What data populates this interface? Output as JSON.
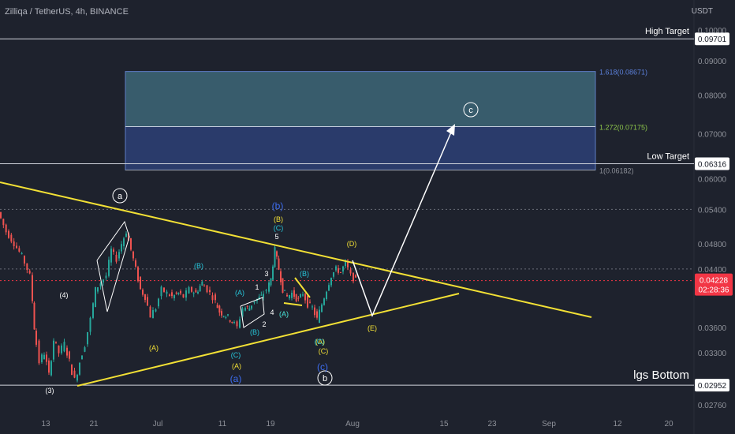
{
  "header": {
    "title": "Zilliqa / TetherUS, 4h, BINANCE",
    "currency": "USDT"
  },
  "colors": {
    "background": "#1e222d",
    "up": "#26a69a",
    "down": "#ef5350",
    "trendline": "#f2e035",
    "projection": "#ffffff",
    "zone_upper": "#4f8ca0",
    "zone_lower": "#3a5ab8",
    "hline": "#d1d4dc",
    "price": "#f23645",
    "grid_text": "#8e9199"
  },
  "chart_data": {
    "type": "candlestick",
    "symbol": "ZILUSDT",
    "timeframe": "4h",
    "exchange": "BINANCE",
    "y_scale": "log",
    "ylim": [
      0.0265,
      0.106
    ],
    "y_ticks": [
      "0.02760",
      "0.03300",
      "0.03600",
      "0.04400",
      "0.04800",
      "0.05400",
      "0.06000",
      "0.07000",
      "0.08000",
      "0.09000",
      "0.10000"
    ],
    "x_ticks": [
      "13",
      "21",
      "Jul",
      "11",
      "19",
      "Aug",
      "15",
      "23",
      "Sep",
      "12",
      "20"
    ],
    "horizontal_levels": [
      {
        "label": "High Target",
        "value": 0.09701,
        "tag": "0.09701"
      },
      {
        "label": "Low Target",
        "value": 0.06316,
        "tag": "0.06316"
      },
      {
        "label": "lgs Bottom",
        "value": 0.02952,
        "tag": "0.02952"
      }
    ],
    "fib_levels": [
      {
        "label": "1.618(0.08671)",
        "value": 0.08671
      },
      {
        "label": "1.272(0.07175)",
        "value": 0.07175
      },
      {
        "label": "1(0.06182)",
        "value": 0.06182
      }
    ],
    "current_price": {
      "value": "0.04228",
      "countdown": "02:28:36"
    },
    "wave_labels": [
      "a",
      "b",
      "c",
      "(a)",
      "(b)",
      "(c)",
      "(A)",
      "(B)",
      "(C)",
      "(D)",
      "(E)",
      "1",
      "2",
      "3",
      "4",
      "5",
      "(3)",
      "(4)"
    ],
    "trendlines": [
      "upper descending (yellow)",
      "lower ascending (yellow)"
    ],
    "projection": "white path from (D) down to (E) then up to c"
  }
}
